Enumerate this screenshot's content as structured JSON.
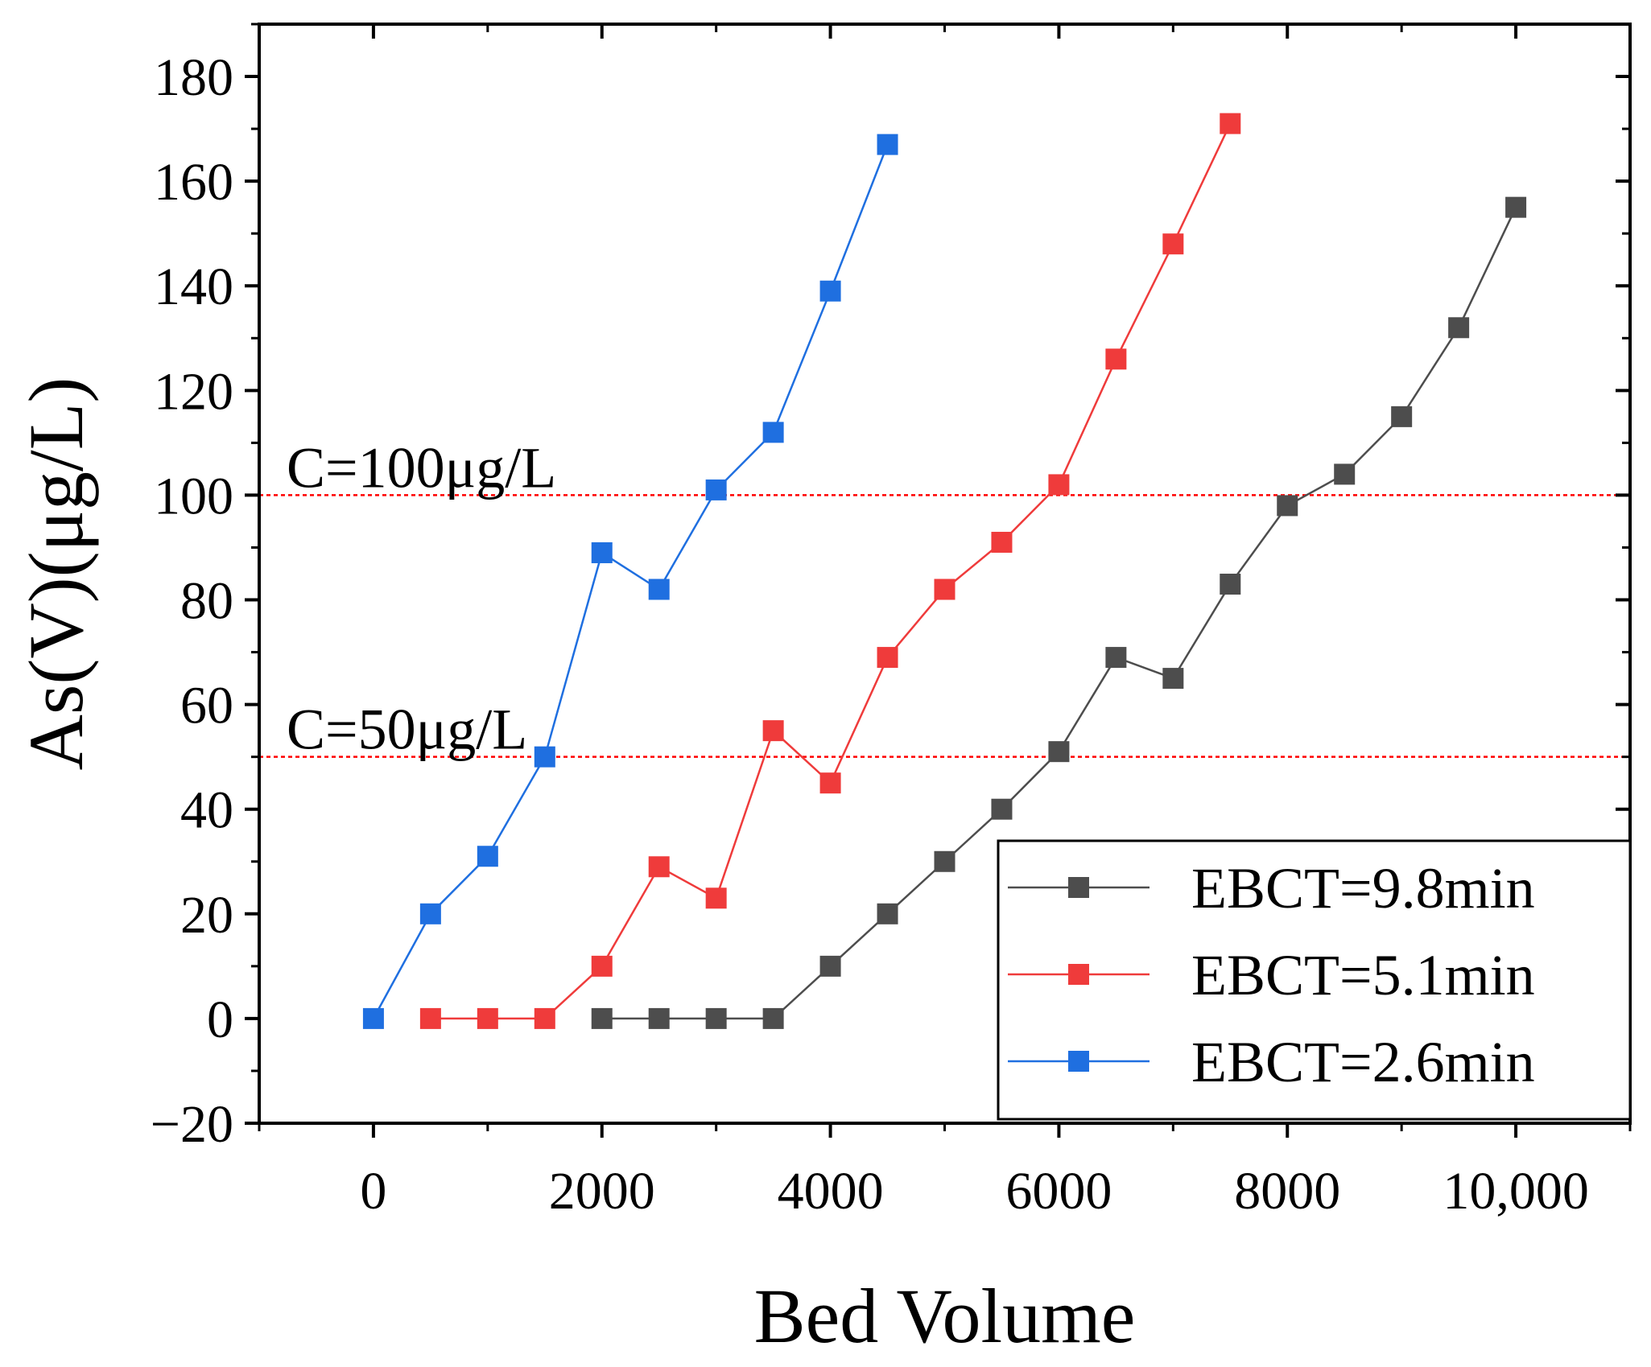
{
  "chart_data": {
    "type": "line",
    "xlabel": "Bed Volume",
    "ylabel": "As(V)(μg/L)",
    "xlim": [
      -1000,
      11000
    ],
    "ylim": [
      -20,
      190
    ],
    "x_ticks": [
      0,
      2000,
      4000,
      6000,
      8000,
      10000
    ],
    "x_tick_labels": [
      "0",
      "2000",
      "4000",
      "6000",
      "8000",
      "10,000"
    ],
    "y_ticks": [
      -20,
      0,
      20,
      40,
      60,
      80,
      100,
      120,
      140,
      160,
      180
    ],
    "y_tick_labels": [
      "−20",
      "0",
      "20",
      "40",
      "60",
      "80",
      "100",
      "120",
      "140",
      "160",
      "180"
    ],
    "grid": false,
    "legend_position": "bottom-right",
    "reference_lines": [
      {
        "y": 100,
        "label": "C=100μg/L",
        "color": "#ff0000"
      },
      {
        "y": 50,
        "label": "C=50μg/L",
        "color": "#ff0000"
      }
    ],
    "series": [
      {
        "name": "EBCT=9.8min",
        "color": "#4d4d4d",
        "x": [
          2000,
          2500,
          3000,
          3500,
          4000,
          4500,
          5000,
          5500,
          6000,
          6500,
          7000,
          7500,
          8000,
          8500,
          9000,
          9500,
          10000
        ],
        "values": [
          0,
          0,
          0,
          0,
          10,
          20,
          30,
          40,
          51,
          69,
          65,
          83,
          98,
          104,
          115,
          132,
          155
        ]
      },
      {
        "name": "EBCT=5.1min",
        "color": "#ef3b3b",
        "x": [
          500,
          1000,
          1500,
          2000,
          2500,
          3000,
          3500,
          4000,
          4500,
          5000,
          5500,
          6000,
          6500,
          7000,
          7500
        ],
        "values": [
          0,
          0,
          0,
          10,
          29,
          23,
          55,
          45,
          69,
          82,
          91,
          102,
          126,
          148,
          171
        ]
      },
      {
        "name": "EBCT=2.6min",
        "color": "#1f6fe0",
        "x": [
          0,
          500,
          1000,
          1500,
          2000,
          2500,
          3000,
          3500,
          4000,
          4500
        ],
        "values": [
          0,
          20,
          31,
          50,
          89,
          82,
          101,
          112,
          139,
          167
        ]
      }
    ]
  }
}
